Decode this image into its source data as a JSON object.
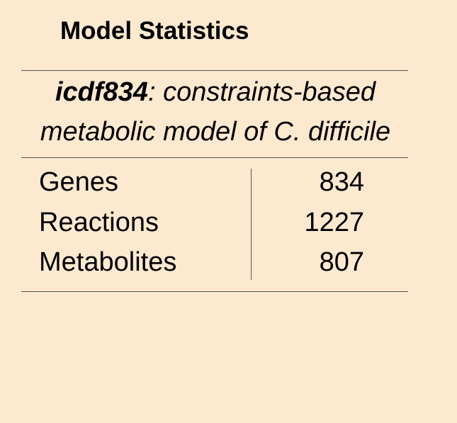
{
  "header": {
    "title": "Model Statistics"
  },
  "subtitle": {
    "model_id": "icdf834",
    "description": ": constraints-based metabolic model of C. difficile"
  },
  "table": {
    "rows": [
      [
        "Genes",
        834
      ],
      [
        "Reactions",
        1227
      ],
      [
        "Metabolites",
        807
      ]
    ]
  }
}
